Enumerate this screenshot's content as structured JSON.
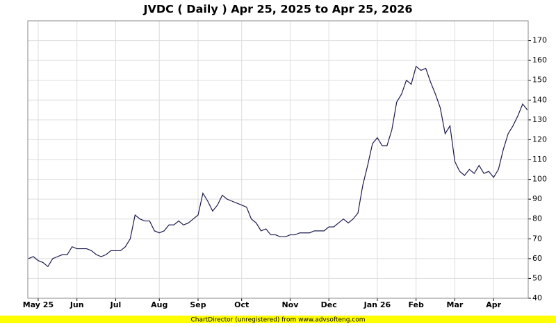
{
  "chart_data": {
    "type": "line",
    "title": "JVDC ( Daily ) Apr 25, 2025 to Apr 25, 2026",
    "footer": "ChartDirector (unregistered) from www.advsofteng.com",
    "categories": [
      null,
      null,
      "May 25",
      null,
      null,
      null,
      null,
      null,
      null,
      null,
      "Jun",
      null,
      null,
      null,
      null,
      null,
      null,
      null,
      "Jul",
      null,
      null,
      null,
      null,
      null,
      null,
      null,
      null,
      "Aug",
      null,
      null,
      null,
      null,
      null,
      null,
      null,
      "Sep",
      null,
      null,
      null,
      null,
      null,
      null,
      null,
      null,
      "Oct",
      null,
      null,
      null,
      null,
      null,
      null,
      null,
      null,
      null,
      "Nov",
      null,
      null,
      null,
      null,
      null,
      null,
      null,
      "Dec",
      null,
      null,
      null,
      null,
      null,
      null,
      null,
      null,
      null,
      "Jan 26",
      null,
      null,
      null,
      null,
      null,
      null,
      null,
      "Feb",
      null,
      null,
      null,
      null,
      null,
      null,
      null,
      "Mar",
      null,
      null,
      null,
      null,
      null,
      null,
      null,
      "Apr",
      null,
      null,
      null,
      null,
      null,
      null,
      null
    ],
    "series": [
      {
        "name": "JVDC",
        "color": "#1a1a4e",
        "values": [
          60,
          61,
          59,
          58,
          56,
          60,
          61,
          62,
          62,
          66,
          65,
          65,
          65,
          64,
          62,
          61,
          62,
          64,
          64,
          64,
          66,
          70,
          82,
          80,
          79,
          79,
          74,
          73,
          74,
          77,
          77,
          79,
          77,
          78,
          80,
          82,
          93,
          89,
          84,
          87,
          92,
          90,
          89,
          88,
          87,
          86,
          80,
          78,
          74,
          75,
          72,
          72,
          71,
          71,
          72,
          72,
          73,
          73,
          73,
          74,
          74,
          74,
          76,
          76,
          78,
          80,
          78,
          80,
          83,
          97,
          107,
          118,
          121,
          117,
          117,
          125,
          139,
          143,
          150,
          148,
          157,
          155,
          156,
          149,
          143,
          136,
          123,
          127,
          109,
          104,
          102,
          105,
          103,
          107,
          103,
          104,
          101,
          105,
          115,
          123,
          127,
          132,
          138,
          135
        ]
      }
    ],
    "ylim": [
      40,
      180
    ],
    "yticks": [
      40,
      50,
      60,
      70,
      80,
      90,
      100,
      110,
      120,
      130,
      140,
      150,
      160,
      170
    ],
    "grid": true
  }
}
